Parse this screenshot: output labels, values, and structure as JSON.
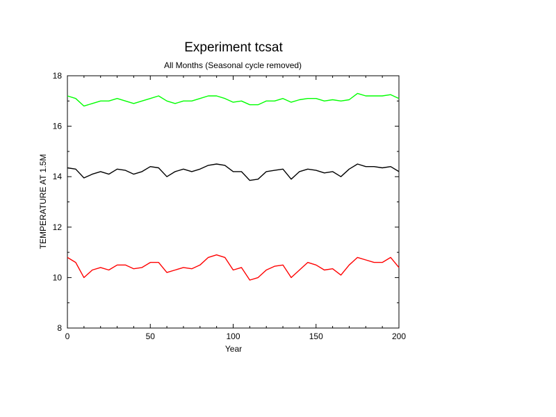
{
  "chart_data": {
    "type": "line",
    "title": "Experiment tcsat",
    "subtitle": "All Months (Seasonal cycle removed)",
    "xlabel": "Year",
    "ylabel": "TEMPERATURE AT 1.5M",
    "xlim": [
      0,
      200
    ],
    "ylim": [
      8,
      18
    ],
    "xticks": [
      0,
      50,
      100,
      150,
      200
    ],
    "yticks": [
      8,
      10,
      12,
      14,
      16,
      18
    ],
    "grid": false,
    "legend": "none",
    "series": [
      {
        "color": "#00ff00",
        "x": [
          0,
          5,
          10,
          15,
          20,
          25,
          30,
          35,
          40,
          45,
          50,
          55,
          60,
          65,
          70,
          75,
          80,
          85,
          90,
          95,
          100,
          105,
          110,
          115,
          120,
          125,
          130,
          135,
          140,
          145,
          150,
          155,
          160,
          165,
          170,
          175,
          180,
          185,
          190,
          195,
          200
        ],
        "values": [
          17.2,
          17.1,
          16.8,
          16.9,
          17.0,
          17.0,
          17.1,
          17.0,
          16.9,
          17.0,
          17.1,
          17.2,
          17.0,
          16.9,
          17.0,
          17.0,
          17.1,
          17.2,
          17.2,
          17.1,
          16.95,
          17.0,
          16.85,
          16.85,
          17.0,
          17.0,
          17.1,
          16.95,
          17.05,
          17.1,
          17.1,
          17.0,
          17.05,
          17.0,
          17.05,
          17.3,
          17.2,
          17.2,
          17.2,
          17.25,
          17.1
        ]
      },
      {
        "color": "#000000",
        "x": [
          0,
          5,
          10,
          15,
          20,
          25,
          30,
          35,
          40,
          45,
          50,
          55,
          60,
          65,
          70,
          75,
          80,
          85,
          90,
          95,
          100,
          105,
          110,
          115,
          120,
          125,
          130,
          135,
          140,
          145,
          150,
          155,
          160,
          165,
          170,
          175,
          180,
          185,
          190,
          195,
          200
        ],
        "values": [
          14.35,
          14.3,
          13.95,
          14.1,
          14.2,
          14.1,
          14.3,
          14.25,
          14.1,
          14.2,
          14.4,
          14.35,
          14.0,
          14.2,
          14.3,
          14.2,
          14.3,
          14.45,
          14.5,
          14.45,
          14.2,
          14.2,
          13.85,
          13.9,
          14.2,
          14.25,
          14.3,
          13.9,
          14.2,
          14.3,
          14.25,
          14.15,
          14.2,
          14.0,
          14.3,
          14.5,
          14.4,
          14.4,
          14.35,
          14.4,
          14.2
        ]
      },
      {
        "color": "#ff0000",
        "x": [
          0,
          5,
          10,
          15,
          20,
          25,
          30,
          35,
          40,
          45,
          50,
          55,
          60,
          65,
          70,
          75,
          80,
          85,
          90,
          95,
          100,
          105,
          110,
          115,
          120,
          125,
          130,
          135,
          140,
          145,
          150,
          155,
          160,
          165,
          170,
          175,
          180,
          185,
          190,
          195,
          200
        ],
        "values": [
          10.8,
          10.6,
          10.0,
          10.3,
          10.4,
          10.3,
          10.5,
          10.5,
          10.35,
          10.4,
          10.6,
          10.6,
          10.2,
          10.3,
          10.4,
          10.35,
          10.5,
          10.8,
          10.9,
          10.8,
          10.3,
          10.4,
          9.9,
          10.0,
          10.3,
          10.45,
          10.5,
          10.0,
          10.3,
          10.6,
          10.5,
          10.3,
          10.35,
          10.1,
          10.5,
          10.8,
          10.7,
          10.6,
          10.6,
          10.8,
          10.4
        ]
      }
    ]
  }
}
